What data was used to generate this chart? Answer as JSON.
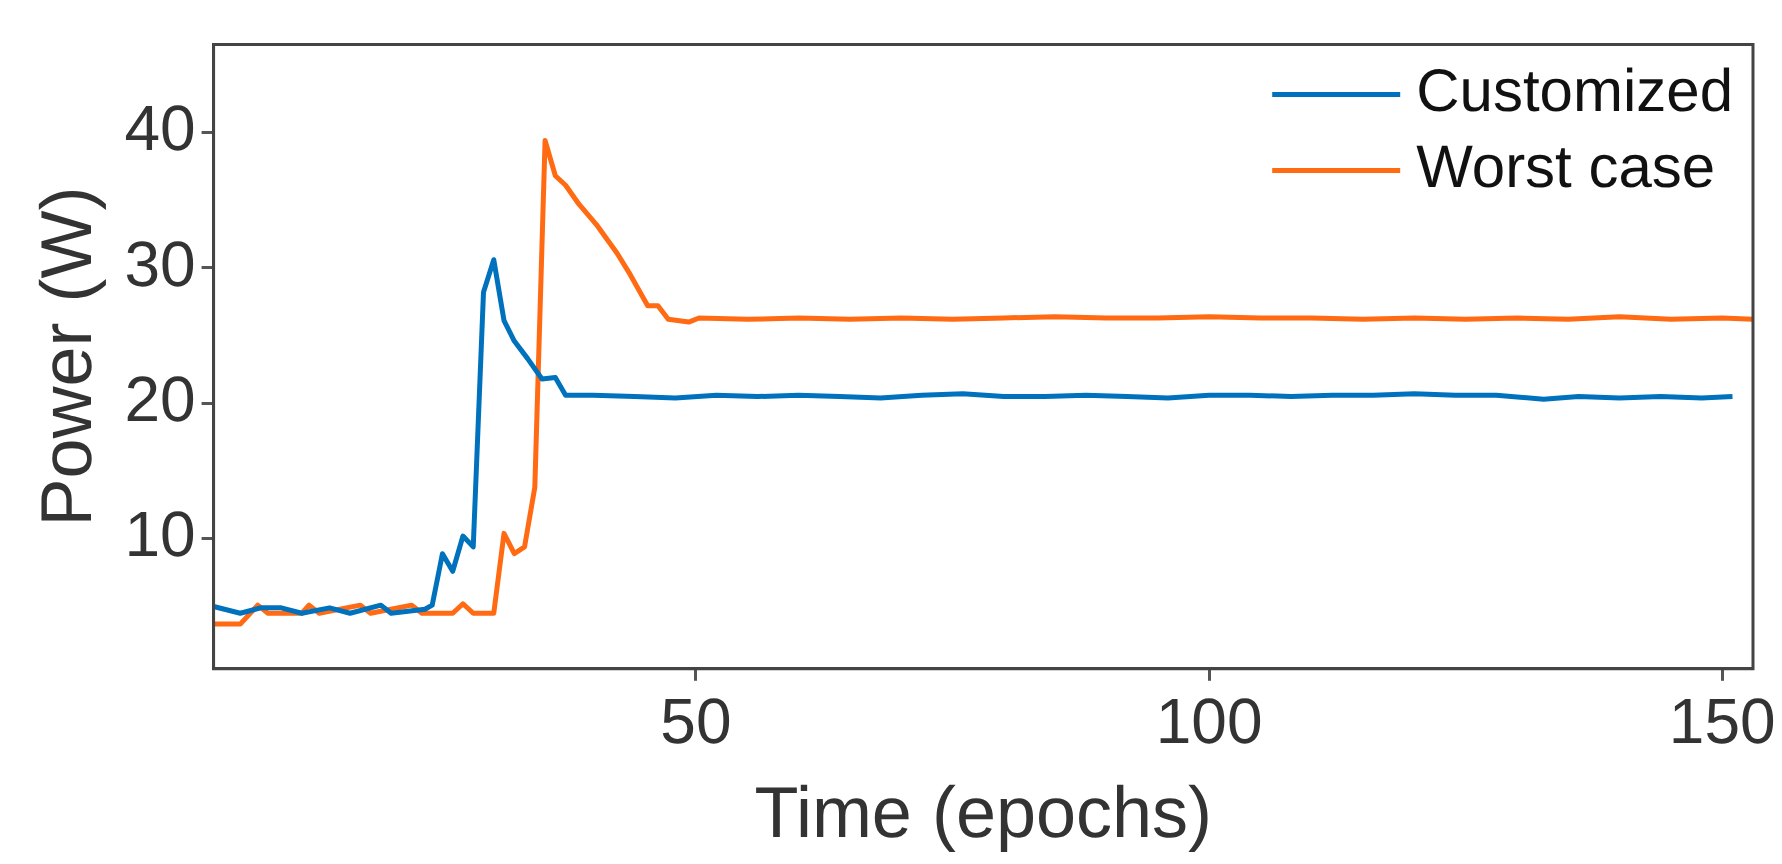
{
  "chart_data": {
    "type": "line",
    "xlabel": "Time (epochs)",
    "ylabel": "Power (W)",
    "xlim": [
      3,
      153
    ],
    "ylim": [
      0.4,
      46.5
    ],
    "xticks": [
      50,
      100,
      150
    ],
    "yticks": [
      10,
      20,
      30,
      40
    ],
    "grid": false,
    "legend": "top right",
    "marker": "none",
    "line_style": "solid",
    "series": [
      {
        "name": "Customized",
        "color": "#0072bd",
        "x": [
          3,
          5.6,
          7.6,
          9.6,
          11.6,
          14.3,
          16.3,
          19.3,
          20.3,
          23.6,
          24.3,
          25.3,
          26.3,
          27.3,
          28.3,
          29.3,
          30.3,
          31.3,
          32.3,
          33.6,
          35,
          36.3,
          37.3,
          40,
          44,
          48,
          52,
          56,
          60,
          64,
          68,
          72,
          76,
          80,
          84,
          88,
          92,
          96,
          100,
          104,
          108,
          112,
          116,
          120,
          124,
          128,
          132.6,
          136,
          140,
          144,
          148,
          151
        ],
        "values": [
          5.0,
          4.5,
          4.9,
          4.9,
          4.5,
          4.9,
          4.5,
          5.1,
          4.5,
          4.8,
          5.1,
          8.9,
          7.6,
          10.2,
          9.4,
          28.2,
          30.6,
          26.1,
          24.6,
          23.3,
          21.8,
          21.9,
          20.6,
          20.6,
          20.5,
          20.4,
          20.6,
          20.5,
          20.6,
          20.5,
          20.4,
          20.6,
          20.7,
          20.5,
          20.5,
          20.6,
          20.5,
          20.4,
          20.6,
          20.6,
          20.5,
          20.6,
          20.6,
          20.7,
          20.6,
          20.6,
          20.3,
          20.5,
          20.4,
          20.5,
          20.4,
          20.5
        ]
      },
      {
        "name": "Worst case",
        "color": "#ff6a13",
        "x": [
          3,
          5.6,
          7.3,
          8.3,
          11.6,
          12.3,
          13.3,
          17.3,
          18.3,
          22.3,
          23.3,
          26.3,
          27.3,
          28.3,
          30.3,
          31.3,
          32.3,
          33.3,
          34.3,
          35.3,
          36.3,
          37.3,
          38.6,
          40.3,
          42.3,
          43.6,
          45.3,
          46.3,
          47.3,
          49.3,
          50.3,
          55,
          60,
          65,
          70,
          75,
          80,
          85,
          90,
          95,
          100,
          105,
          110,
          115,
          120,
          125,
          130,
          135,
          140,
          145,
          150,
          153
        ],
        "values": [
          3.7,
          3.7,
          5.1,
          4.5,
          4.5,
          5.1,
          4.5,
          5.1,
          4.5,
          5.1,
          4.5,
          4.5,
          5.2,
          4.5,
          4.5,
          10.4,
          8.9,
          9.4,
          13.8,
          39.4,
          36.8,
          36.1,
          34.7,
          33.2,
          31.1,
          29.5,
          27.2,
          27.2,
          26.2,
          26.0,
          26.3,
          26.2,
          26.3,
          26.2,
          26.3,
          26.2,
          26.3,
          26.4,
          26.3,
          26.3,
          26.4,
          26.3,
          26.3,
          26.2,
          26.3,
          26.2,
          26.3,
          26.2,
          26.4,
          26.2,
          26.3,
          26.2
        ]
      }
    ]
  }
}
